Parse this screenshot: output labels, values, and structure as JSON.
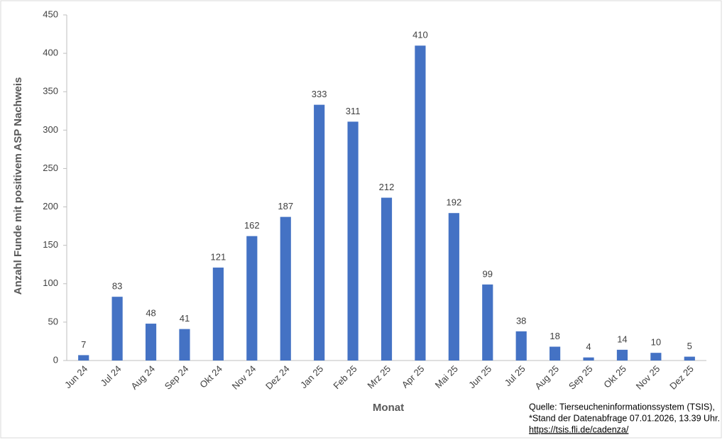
{
  "chart_data": {
    "type": "bar",
    "x_label": "Monat",
    "y_label": "Anzahl Funde mit positivem ASP Nachweis",
    "categories": [
      "Jun 24",
      "Jul 24",
      "Aug 24",
      "Sep 24",
      "Okt 24",
      "Nov 24",
      "Dez 24",
      "Jan 25",
      "Feb 25",
      "Mrz 25",
      "Apr 25",
      "Mai 25",
      "Jun 25",
      "Jul 25",
      "Aug 25",
      "Sep 25",
      "Okt 25",
      "Nov 25",
      "Dez 25"
    ],
    "values": [
      7,
      83,
      48,
      41,
      121,
      162,
      187,
      333,
      311,
      212,
      410,
      192,
      99,
      38,
      18,
      4,
      14,
      10,
      5
    ],
    "color": "#4472c4",
    "ylim": [
      0,
      450
    ],
    "yticks": [
      0,
      50,
      100,
      150,
      200,
      250,
      300,
      350,
      400,
      450
    ],
    "grid": false,
    "source": [
      "Quelle: Tierseucheninformationssystem (TSIS),",
      "*Stand der Datenabfrage 07.01.2026, 13.39 Uhr."
    ],
    "source_link": "https://tsis.fli.de/cadenza/"
  }
}
